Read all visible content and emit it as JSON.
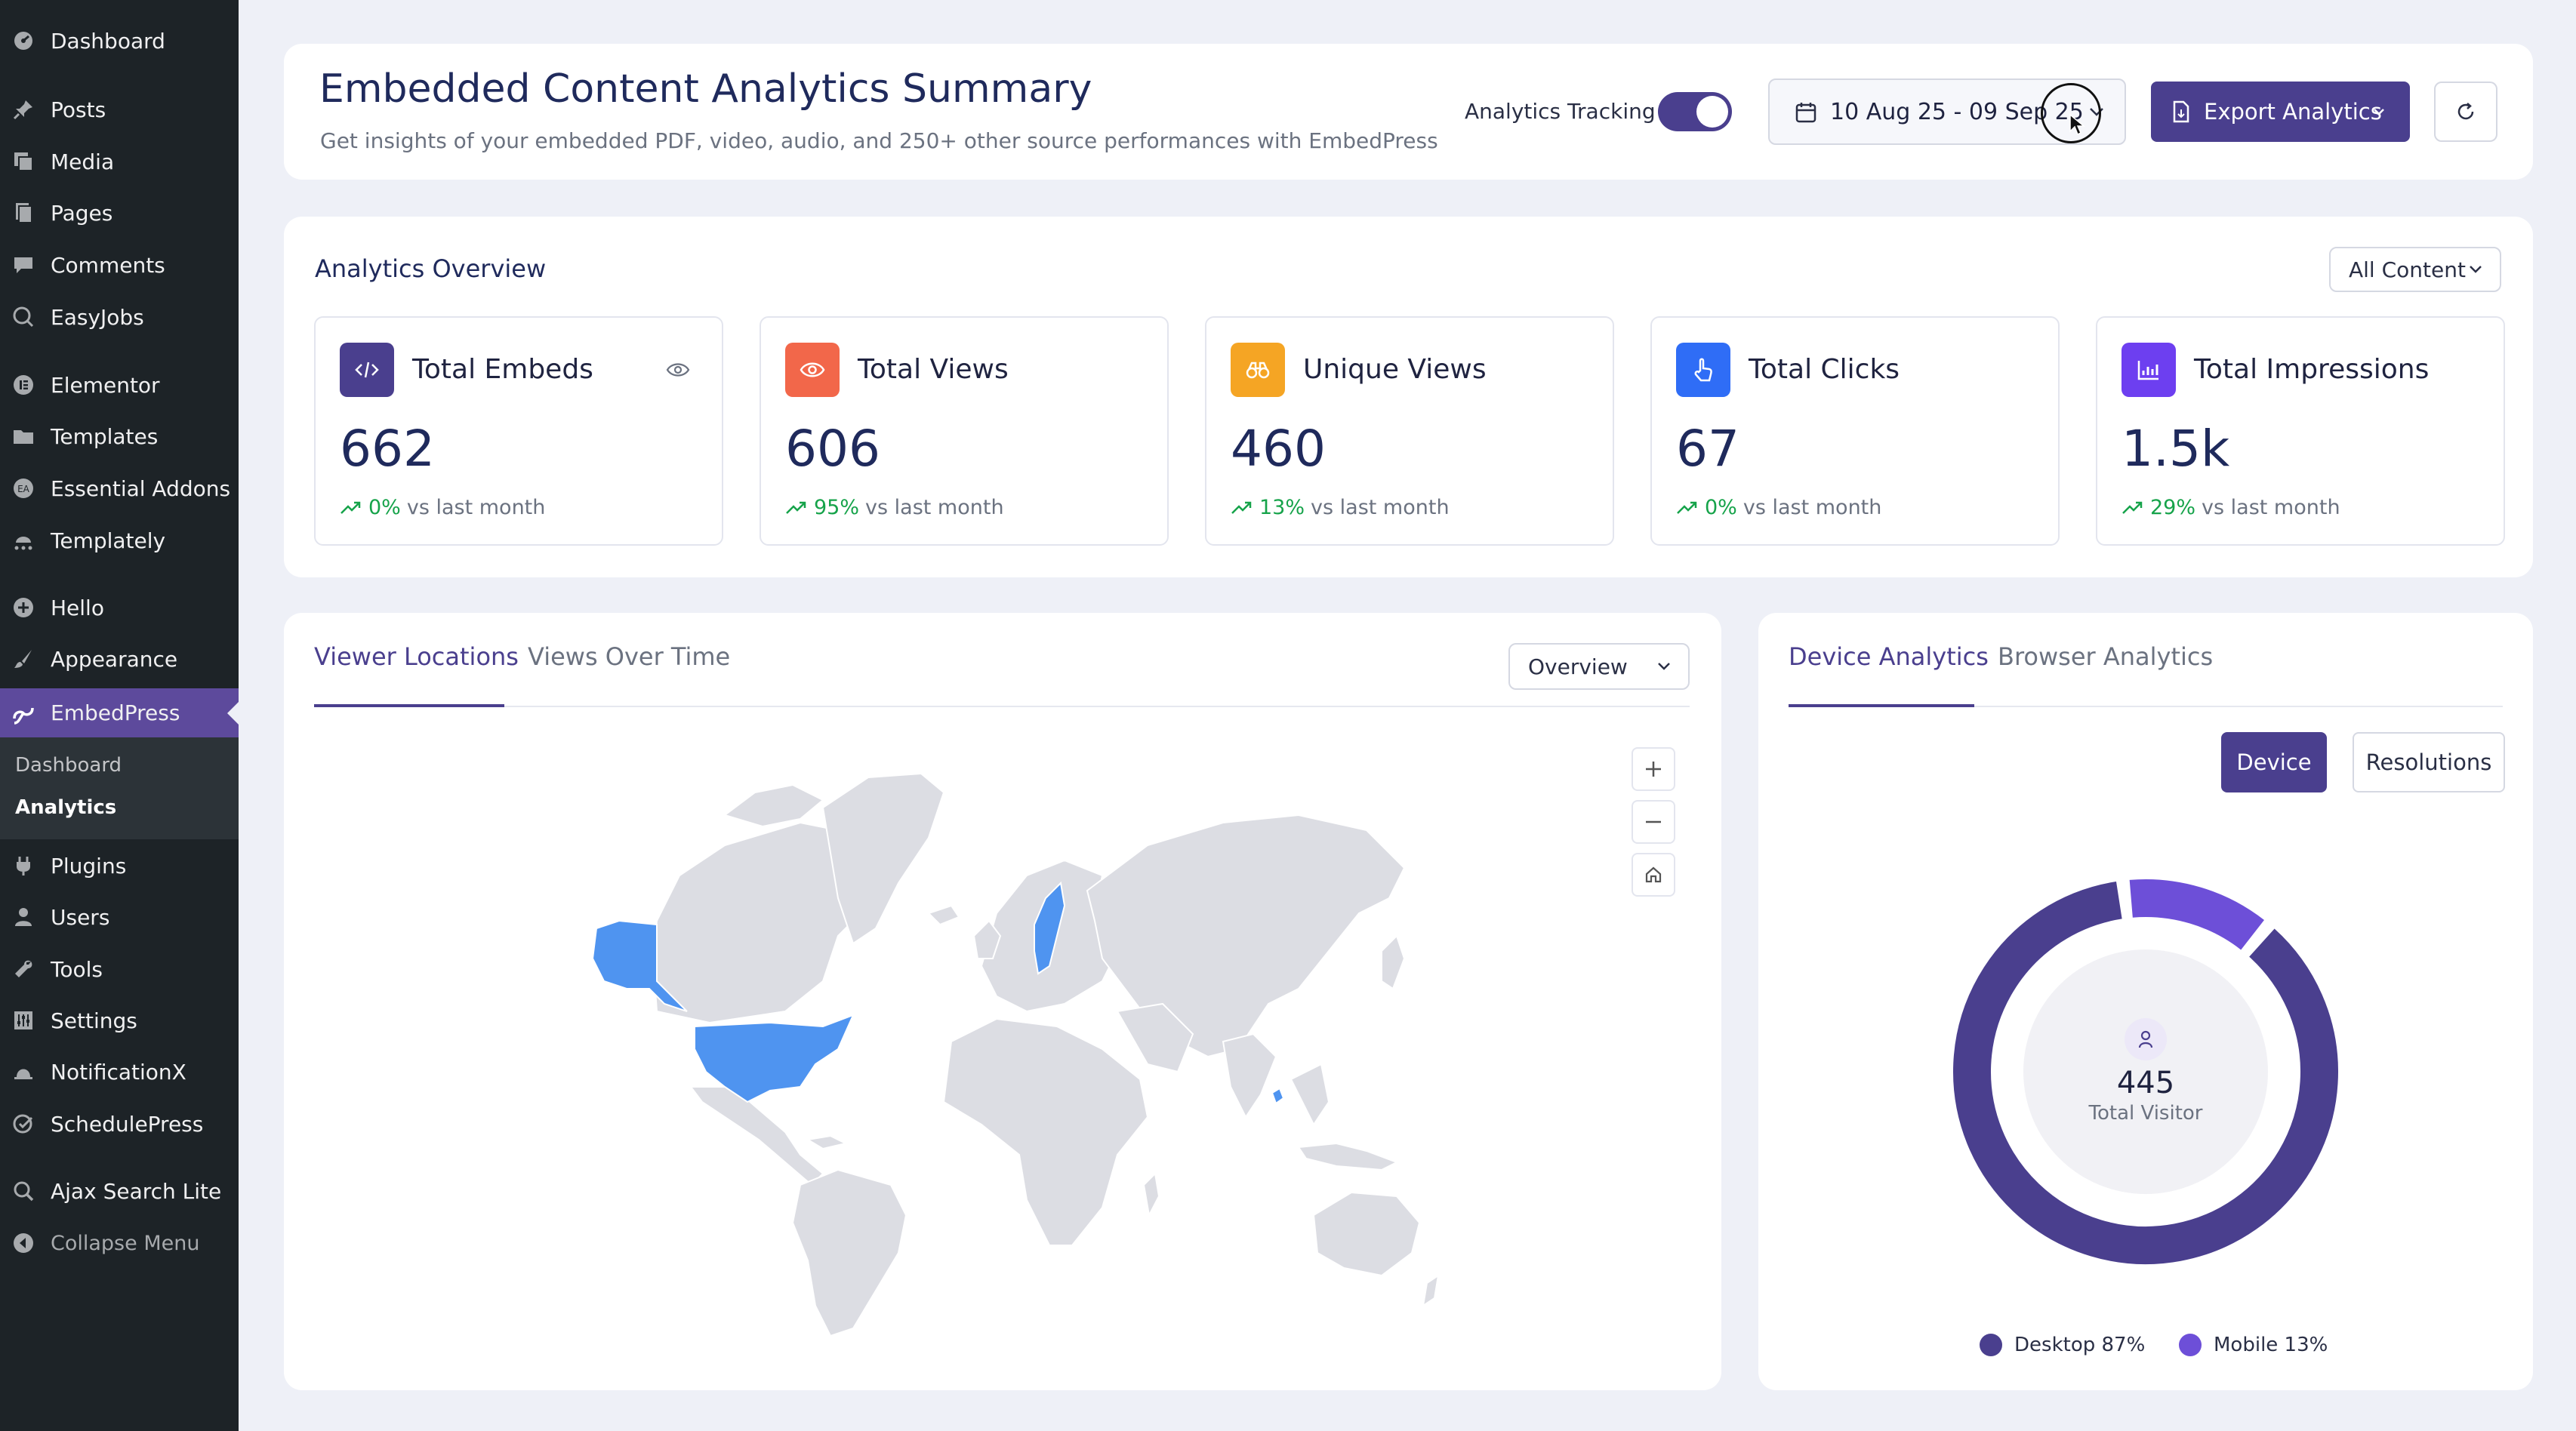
{
  "sidebar": {
    "items": [
      {
        "label": "Dashboard",
        "icon": "dashboard-icon"
      },
      {
        "label": "Posts",
        "icon": "pin-icon"
      },
      {
        "label": "Media",
        "icon": "media-icon"
      },
      {
        "label": "Pages",
        "icon": "pages-icon"
      },
      {
        "label": "Comments",
        "icon": "comment-icon"
      },
      {
        "label": "EasyJobs",
        "icon": "easyjobs-icon"
      },
      {
        "label": "Elementor",
        "icon": "elementor-icon"
      },
      {
        "label": "Templates",
        "icon": "folder-icon"
      },
      {
        "label": "Essential Addons",
        "icon": "essential-addons-icon"
      },
      {
        "label": "Templately",
        "icon": "templately-icon"
      },
      {
        "label": "Hello",
        "icon": "plus-circle-icon"
      },
      {
        "label": "Appearance",
        "icon": "brush-icon"
      },
      {
        "label": "EmbedPress",
        "icon": "embedpress-icon"
      },
      {
        "label": "Plugins",
        "icon": "plugin-icon"
      },
      {
        "label": "Users",
        "icon": "user-icon"
      },
      {
        "label": "Tools",
        "icon": "wrench-icon"
      },
      {
        "label": "Settings",
        "icon": "settings-icon"
      },
      {
        "label": "NotificationX",
        "icon": "notificationx-icon"
      },
      {
        "label": "SchedulePress",
        "icon": "schedule-icon"
      },
      {
        "label": "Ajax Search Lite",
        "icon": "search-icon"
      }
    ],
    "submenu": [
      {
        "label": "Dashboard"
      },
      {
        "label": "Analytics"
      }
    ],
    "collapse_label": "Collapse Menu"
  },
  "header": {
    "title": "Embedded Content Analytics Summary",
    "subtitle": "Get insights of your embedded PDF, video, audio, and 250+ other source performances with EmbedPress",
    "tracking_label": "Analytics Tracking",
    "tracking_on": true,
    "date_range": "10 Aug 25 - 09 Sep 25",
    "export_label": "Export Analytics"
  },
  "overview": {
    "title": "Analytics Overview",
    "filter": "All Content",
    "metrics": [
      {
        "title": "Total Embeds",
        "value": "662",
        "pct": "0%",
        "suffix": "vs last month",
        "color": "#4a3f8e",
        "icon": "code-icon"
      },
      {
        "title": "Total Views",
        "value": "606",
        "pct": "95%",
        "suffix": "vs last month",
        "color": "#f2674a",
        "icon": "eye-icon"
      },
      {
        "title": "Unique Views",
        "value": "460",
        "pct": "13%",
        "suffix": "vs last month",
        "color": "#f5a524",
        "icon": "binoculars-icon"
      },
      {
        "title": "Total Clicks",
        "value": "67",
        "pct": "0%",
        "suffix": "vs last month",
        "color": "#2f6df6",
        "icon": "pointer-icon"
      },
      {
        "title": "Total Impressions",
        "value": "1.5k",
        "pct": "29%",
        "suffix": "vs last month",
        "color": "#6d3ff0",
        "icon": "chart-icon"
      }
    ]
  },
  "locations": {
    "tabs": [
      "Viewer Locations",
      "Views Over Time"
    ],
    "select": "Overview",
    "highlighted_regions": [
      "Alaska",
      "United States",
      "Sweden",
      "Bangladesh"
    ],
    "highlight_color": "#4f94f0",
    "land_color": "#dcdde3"
  },
  "device": {
    "tabs": [
      "Device Analytics",
      "Browser Analytics"
    ],
    "buttons": [
      "Device",
      "Resolutions"
    ],
    "total_value": "445",
    "total_label": "Total Visitor",
    "segments": [
      {
        "label": "Desktop 87%",
        "percent": 87,
        "color": "#4a3f8e"
      },
      {
        "label": "Mobile 13%",
        "percent": 13,
        "color": "#6d4fd8"
      }
    ]
  }
}
